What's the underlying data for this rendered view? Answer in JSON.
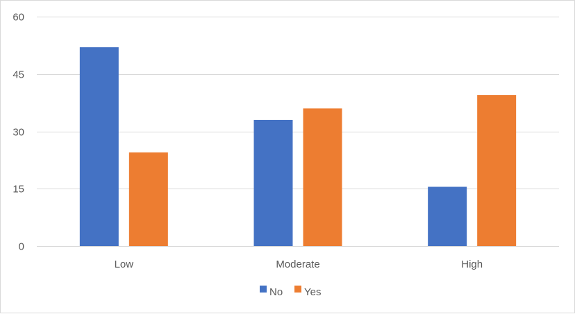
{
  "chart_data": {
    "type": "bar",
    "title": "",
    "xlabel": "",
    "ylabel": "",
    "categories": [
      "Low",
      "Moderate",
      "High"
    ],
    "series": [
      {
        "name": "No",
        "values": [
          52,
          33,
          15.5
        ],
        "color": "#4472c4"
      },
      {
        "name": "Yes",
        "values": [
          24.5,
          36,
          39.5
        ],
        "color": "#ed7d31"
      }
    ],
    "ylim": [
      0,
      60
    ],
    "yticks": [
      "0",
      "15",
      "30",
      "45",
      "60"
    ],
    "grid": true,
    "legend_position": "bottom",
    "gridline_color": "#d9d9d9",
    "text_color": "#595959"
  }
}
